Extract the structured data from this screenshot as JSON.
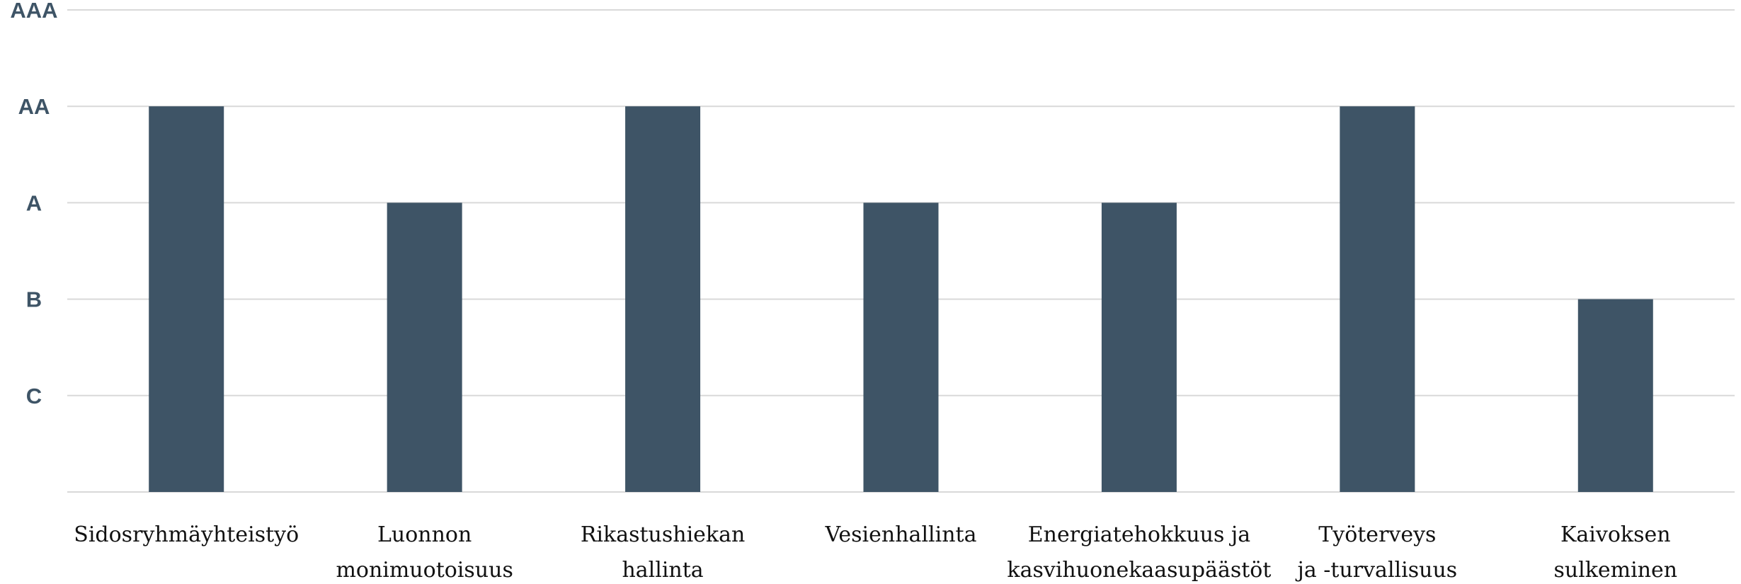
{
  "chart_data": {
    "type": "bar",
    "categories": [
      [
        "Sidosryhmäyhteistyö"
      ],
      [
        "Luonnon",
        "monimuotoisuus"
      ],
      [
        "Rikastushiekan",
        "hallinta"
      ],
      [
        "Vesienhallinta"
      ],
      [
        "Energiatehokkuus ja",
        "kasvihuonekaasupäästöt"
      ],
      [
        "Työterveys",
        "ja -turvallisuus"
      ],
      [
        "Kaivoksen",
        "sulkeminen"
      ]
    ],
    "y_levels": [
      "C",
      "B",
      "A",
      "AA",
      "AAA"
    ],
    "values": [
      "AA",
      "A",
      "AA",
      "A",
      "A",
      "AA",
      "B"
    ],
    "ylim": [
      0,
      5
    ],
    "grid": true,
    "colors": {
      "bar": "#3e5466",
      "y_tick_text": "#3e5466"
    }
  }
}
